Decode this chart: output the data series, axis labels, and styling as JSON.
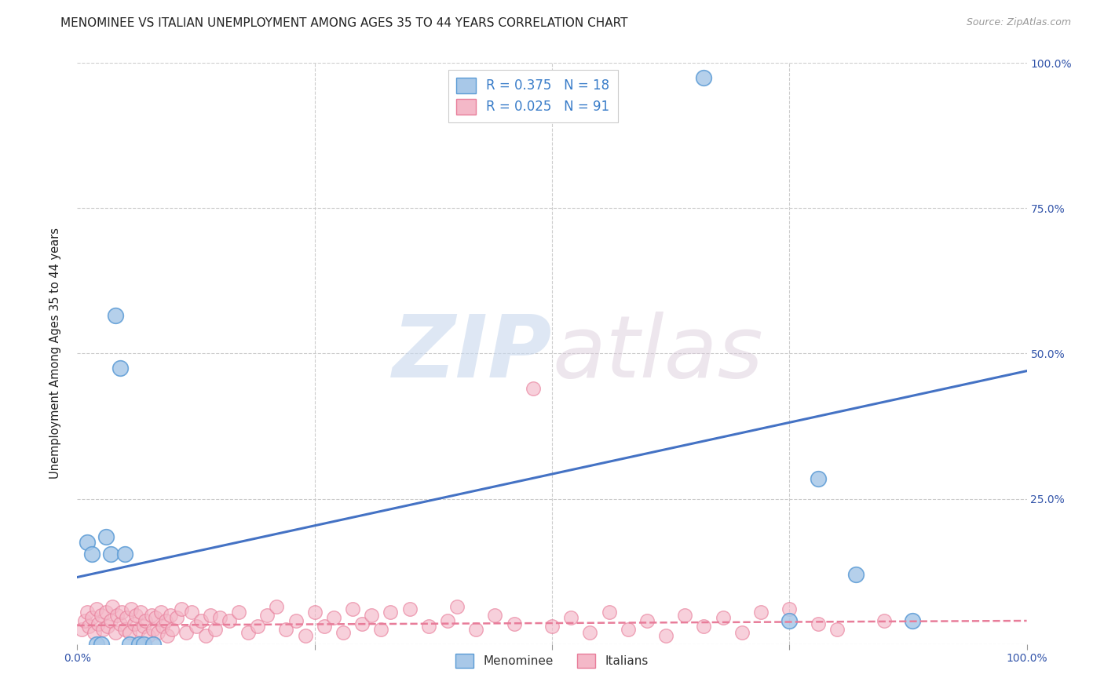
{
  "title": "MENOMINEE VS ITALIAN UNEMPLOYMENT AMONG AGES 35 TO 44 YEARS CORRELATION CHART",
  "source": "Source: ZipAtlas.com",
  "ylabel": "Unemployment Among Ages 35 to 44 years",
  "xlim": [
    0,
    1.0
  ],
  "ylim": [
    0,
    1.0
  ],
  "xticks": [
    0.0,
    0.25,
    0.5,
    0.75,
    1.0
  ],
  "xticklabels": [
    "0.0%",
    "",
    "",
    "",
    "100.0%"
  ],
  "ytick_positions": [
    0.0,
    0.25,
    0.5,
    0.75,
    1.0
  ],
  "ytick_labels_right": [
    "",
    "25.0%",
    "50.0%",
    "75.0%",
    "100.0%"
  ],
  "watermark_zip": "ZIP",
  "watermark_atlas": "atlas",
  "menominee_color": "#a8c8e8",
  "menominee_edge": "#5b9bd5",
  "italian_color": "#f4b8c8",
  "italian_edge": "#e87d9a",
  "blue_line_color": "#4472c4",
  "pink_line_color": "#e87d9a",
  "legend_R_menominee": "R = 0.375",
  "legend_N_menominee": "N = 18",
  "legend_R_italian": "R = 0.025",
  "legend_N_italian": "N = 91",
  "menominee_x": [
    0.01,
    0.015,
    0.02,
    0.025,
    0.03,
    0.035,
    0.04,
    0.045,
    0.05,
    0.055,
    0.065,
    0.07,
    0.08,
    0.66,
    0.75,
    0.78,
    0.82,
    0.88
  ],
  "menominee_y": [
    0.175,
    0.155,
    0.0,
    0.0,
    0.185,
    0.155,
    0.565,
    0.475,
    0.155,
    0.0,
    0.0,
    0.0,
    0.0,
    0.975,
    0.04,
    0.285,
    0.12,
    0.04
  ],
  "italian_x": [
    0.005,
    0.008,
    0.01,
    0.012,
    0.015,
    0.018,
    0.02,
    0.022,
    0.025,
    0.027,
    0.03,
    0.032,
    0.035,
    0.037,
    0.04,
    0.042,
    0.045,
    0.047,
    0.05,
    0.052,
    0.055,
    0.057,
    0.06,
    0.062,
    0.065,
    0.067,
    0.07,
    0.072,
    0.075,
    0.078,
    0.08,
    0.082,
    0.085,
    0.088,
    0.09,
    0.093,
    0.095,
    0.098,
    0.1,
    0.105,
    0.11,
    0.115,
    0.12,
    0.125,
    0.13,
    0.135,
    0.14,
    0.145,
    0.15,
    0.16,
    0.17,
    0.18,
    0.19,
    0.2,
    0.21,
    0.22,
    0.23,
    0.24,
    0.25,
    0.26,
    0.27,
    0.28,
    0.29,
    0.3,
    0.31,
    0.32,
    0.33,
    0.35,
    0.37,
    0.39,
    0.4,
    0.42,
    0.44,
    0.46,
    0.48,
    0.5,
    0.52,
    0.54,
    0.56,
    0.58,
    0.6,
    0.62,
    0.64,
    0.66,
    0.68,
    0.7,
    0.72,
    0.75,
    0.78,
    0.8,
    0.85
  ],
  "italian_y": [
    0.025,
    0.04,
    0.055,
    0.03,
    0.045,
    0.02,
    0.06,
    0.035,
    0.05,
    0.025,
    0.055,
    0.03,
    0.04,
    0.065,
    0.02,
    0.05,
    0.035,
    0.055,
    0.025,
    0.045,
    0.02,
    0.06,
    0.035,
    0.05,
    0.025,
    0.055,
    0.03,
    0.04,
    0.015,
    0.05,
    0.025,
    0.045,
    0.02,
    0.055,
    0.03,
    0.04,
    0.015,
    0.05,
    0.025,
    0.045,
    0.06,
    0.02,
    0.055,
    0.03,
    0.04,
    0.015,
    0.05,
    0.025,
    0.045,
    0.04,
    0.055,
    0.02,
    0.03,
    0.05,
    0.065,
    0.025,
    0.04,
    0.015,
    0.055,
    0.03,
    0.045,
    0.02,
    0.06,
    0.035,
    0.05,
    0.025,
    0.055,
    0.06,
    0.03,
    0.04,
    0.065,
    0.025,
    0.05,
    0.035,
    0.44,
    0.03,
    0.045,
    0.02,
    0.055,
    0.025,
    0.04,
    0.015,
    0.05,
    0.03,
    0.045,
    0.02,
    0.055,
    0.06,
    0.035,
    0.025,
    0.04
  ],
  "blue_line_y_intercept": 0.115,
  "blue_line_slope": 0.355,
  "pink_line_y_intercept": 0.032,
  "pink_line_slope": 0.008,
  "grid_color": "#cccccc",
  "background_color": "#ffffff",
  "title_fontsize": 11,
  "axis_label_fontsize": 10.5,
  "tick_fontsize": 10
}
